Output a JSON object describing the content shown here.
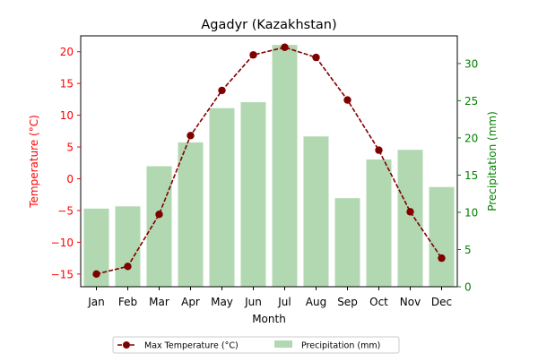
{
  "chart_data": {
    "type": "bar+line",
    "title": "Agadyr (Kazakhstan)",
    "xlabel": "Month",
    "ylabel_left": "Temperature (°C)",
    "ylabel_right": "Precipitation (mm)",
    "categories": [
      "Jan",
      "Feb",
      "Mar",
      "Apr",
      "May",
      "Jun",
      "Jul",
      "Aug",
      "Sep",
      "Oct",
      "Nov",
      "Dec"
    ],
    "series": [
      {
        "name": "Max Temperature (°C)",
        "type": "line",
        "axis": "left",
        "color": "#800000",
        "values": [
          -15.0,
          -13.8,
          -5.6,
          6.8,
          13.9,
          19.5,
          20.7,
          19.1,
          12.4,
          4.5,
          -5.2,
          -12.5
        ]
      },
      {
        "name": "Precipitation (mm)",
        "type": "bar",
        "axis": "right",
        "color": "#b2d8b2",
        "values": [
          10.5,
          10.8,
          16.2,
          19.4,
          24.0,
          24.8,
          32.5,
          20.2,
          11.9,
          17.1,
          18.4,
          13.4
        ]
      }
    ],
    "ylim_left": [
      -17,
      22.5
    ],
    "ylim_right": [
      0,
      33.72
    ],
    "yticks_left": [
      -15,
      -10,
      -5,
      0,
      5,
      10,
      15,
      20
    ],
    "yticks_right": [
      0,
      5,
      10,
      15,
      20,
      25,
      30
    ],
    "left_axis_color": "#ff0000",
    "right_axis_color": "#008000",
    "grid": false,
    "legend": "bottom-center"
  }
}
